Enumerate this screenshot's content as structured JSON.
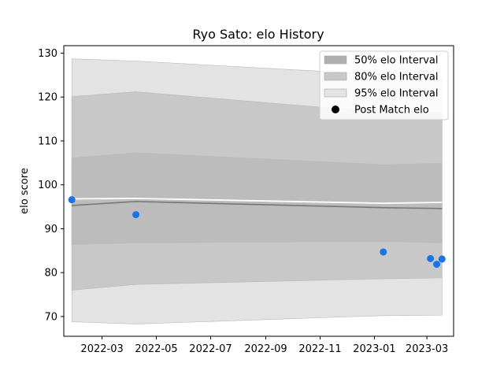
{
  "chart_data": {
    "type": "line",
    "title": "Ryo Sato: elo History",
    "xlabel": "",
    "ylabel": "elo score",
    "x_axis_type": "date",
    "xlim": [
      "2022-01-17",
      "2023-03-31"
    ],
    "ylim": [
      65.5,
      131.7
    ],
    "x_ticks": [
      "2022-03-01",
      "2022-05-01",
      "2022-07-01",
      "2022-09-01",
      "2022-11-01",
      "2023-01-01",
      "2023-03-01"
    ],
    "x_tick_labels": [
      "2022-03",
      "2022-05",
      "2022-07",
      "2022-09",
      "2022-11",
      "2023-01",
      "2023-03"
    ],
    "y_ticks": [
      70,
      80,
      90,
      100,
      110,
      120,
      130
    ],
    "y_tick_labels": [
      "70",
      "80",
      "90",
      "100",
      "110",
      "120",
      "130"
    ],
    "grid": false,
    "legend_position": "top-right",
    "legend": [
      {
        "label": "50% elo Interval",
        "kind": "band",
        "color": "#b0b0b0"
      },
      {
        "label": "80% elo Interval",
        "kind": "band",
        "color": "#c8c8c8"
      },
      {
        "label": "95% elo Interval",
        "kind": "band",
        "color": "#e3e3e3"
      },
      {
        "label": "Post Match elo",
        "kind": "marker",
        "color": "#000000"
      }
    ],
    "band_dates": [
      "2022-01-26",
      "2022-04-08",
      "2023-01-11",
      "2023-03-18"
    ],
    "bands": {
      "95": {
        "lower": [
          68.8,
          68.3,
          70.2,
          70.3
        ],
        "upper": [
          128.7,
          128.2,
          125.1,
          124.0
        ],
        "color": "#e3e3e3"
      },
      "80": {
        "lower": [
          76.0,
          77.3,
          78.6,
          78.8
        ],
        "upper": [
          120.1,
          121.2,
          116.5,
          116.5
        ],
        "color": "#c8c8c8"
      },
      "50": {
        "lower": [
          86.4,
          86.8,
          87.1,
          86.8
        ],
        "upper": [
          106.1,
          107.3,
          104.6,
          104.9
        ],
        "color": "#bcbcbc"
      }
    },
    "mean_line": {
      "dates": [
        "2022-01-26",
        "2022-04-08",
        "2023-01-11",
        "2023-03-18"
      ],
      "values": [
        95.3,
        96.2,
        94.8,
        94.6
      ],
      "color": "#777777"
    },
    "white_line": {
      "dates": [
        "2022-01-26",
        "2022-04-08",
        "2023-01-11",
        "2023-03-18"
      ],
      "values": [
        96.8,
        96.9,
        95.8,
        96.0
      ],
      "color": "#ffffff"
    },
    "points": {
      "name": "Post Match elo",
      "color": "#1a73e8",
      "dates": [
        "2022-01-26",
        "2022-04-08",
        "2023-01-11",
        "2023-03-05",
        "2023-03-12",
        "2023-03-18"
      ],
      "values": [
        96.6,
        93.2,
        84.7,
        83.2,
        81.9,
        83.1
      ]
    }
  }
}
